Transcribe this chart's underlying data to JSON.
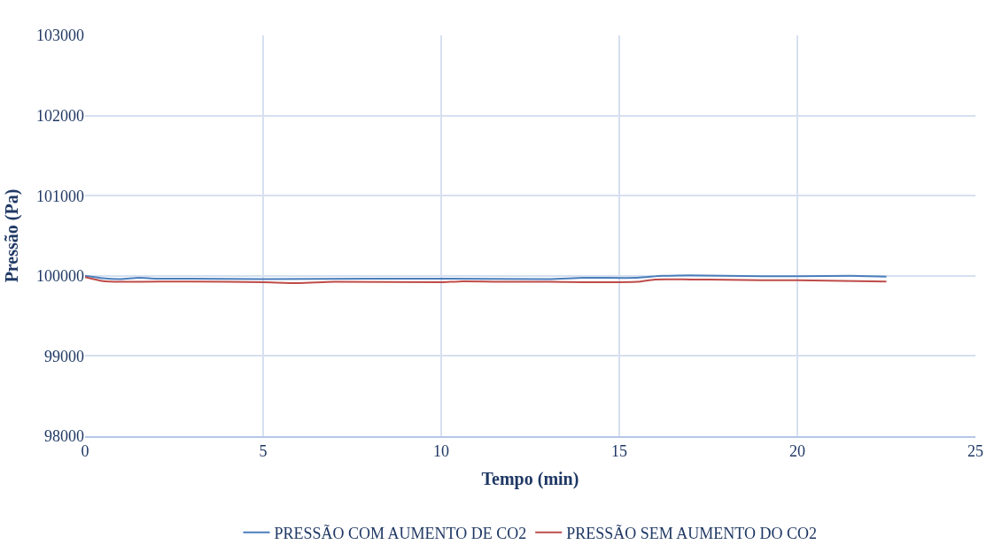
{
  "chart_data": {
    "type": "line",
    "xlabel": "Tempo (min)",
    "ylabel": "Pressão (Pa)",
    "xlim": [
      0,
      25
    ],
    "xticks": [
      0,
      5,
      10,
      15,
      20,
      25
    ],
    "ylim": [
      98000,
      103000
    ],
    "yticks": [
      98000,
      99000,
      100000,
      101000,
      102000,
      103000
    ],
    "grid": true,
    "legend": "bottom",
    "marker": "none",
    "line_style": "solid",
    "series": [
      {
        "name": "PRESSÃO COM AUMENTO DE CO2",
        "color": "#4a7ebb",
        "x": [
          0,
          0.5,
          1,
          1.5,
          2,
          3,
          5,
          8,
          10,
          13,
          14,
          15.5,
          16.2,
          17,
          18,
          19,
          20,
          21.5,
          22.5
        ],
        "values": [
          100000,
          99970,
          99960,
          99975,
          99965,
          99965,
          99960,
          99965,
          99965,
          99960,
          99975,
          99975,
          100000,
          100005,
          100000,
          99995,
          99995,
          100000,
          99990
        ]
      },
      {
        "name": "PRESSÃO SEM AUMENTO DO CO2",
        "color": "#be4b48",
        "x": [
          0,
          0.5,
          1,
          3,
          5,
          6,
          7,
          10,
          10.5,
          12,
          13,
          14,
          15.5,
          16,
          17,
          18,
          19,
          20,
          22.5
        ],
        "values": [
          99985,
          99935,
          99925,
          99930,
          99920,
          99910,
          99925,
          99920,
          99930,
          99925,
          99925,
          99920,
          99925,
          99955,
          99955,
          99950,
          99945,
          99945,
          99930
        ]
      }
    ]
  }
}
